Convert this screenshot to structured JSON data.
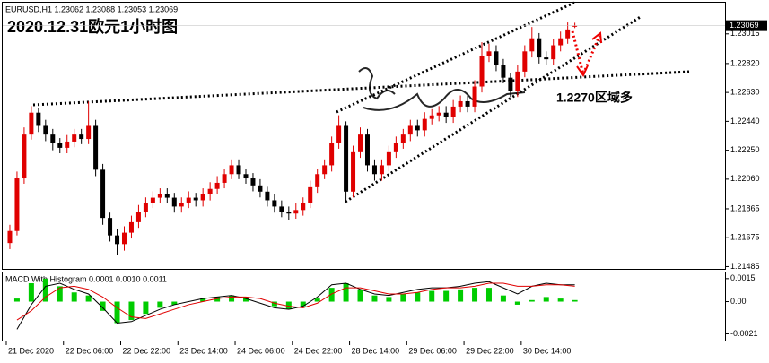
{
  "chart_data": {
    "type": "candlestick",
    "header": "EURUSD,H1  1.23062 1.23088 1.23053 1.23069",
    "title": "2020.12.31欧元1小时图",
    "annotation": "1.2270区域多",
    "up_color": "#e00000",
    "down_color": "#000000",
    "xlim": [
      -1,
      100
    ],
    "ylim": [
      1.2147,
      1.2322
    ],
    "yticks": [
      1.23015,
      {
        "value": 1.2282,
        "label": "1.22820"
      },
      {
        "value": 1.2263,
        "label": "1.22630"
      },
      {
        "value": 1.2244,
        "label": "1.22440"
      },
      {
        "value": 1.2225,
        "label": "1.22250"
      },
      {
        "value": 1.2206,
        "label": "1.22060"
      },
      1.21865,
      1.21675,
      1.21485
    ],
    "xticks": [
      {
        "value": -0.5,
        "label": "21 Dec 2020"
      },
      {
        "value": 7.5,
        "label": "22 Dec 06:00"
      },
      {
        "value": 15.5,
        "label": "22 Dec 22:00"
      },
      {
        "value": 23.5,
        "label": "23 Dec 14:00"
      },
      {
        "value": 31.5,
        "label": "24 Dec 06:00"
      },
      {
        "value": 39.5,
        "label": "24 Dec 22:00"
      },
      {
        "value": 47.5,
        "label": "28 Dec 14:00"
      },
      {
        "value": 55.5,
        "label": "29 Dec 06:00"
      },
      {
        "value": 63.5,
        "label": "29 Dec 22:00"
      },
      {
        "value": 71.5,
        "label": "30 Dec 14:00"
      }
    ],
    "candles": {
      "open": [
        1.2164,
        1.21719,
        1.22065,
        1.22353,
        1.22497,
        1.2241,
        1.22353,
        1.22295,
        1.22266,
        1.22307,
        1.22353,
        1.22324,
        1.2241,
        1.22122,
        1.21805,
        1.2169,
        1.21633,
        1.21708,
        1.21777,
        1.21846,
        1.21903,
        1.21938,
        1.21961,
        1.21938,
        1.2188,
        1.21903,
        1.21938,
        1.21921,
        1.21961,
        1.21996,
        1.22036,
        1.22093,
        1.22151,
        1.22093,
        1.22065,
        1.22019,
        1.21978,
        1.21921,
        1.2188,
        1.21846,
        1.21834,
        1.21857,
        1.21903,
        1.22007,
        1.22093,
        1.22151,
        1.22295,
        1.2241,
        1.21978,
        1.22237,
        1.22353,
        1.22151,
        1.22093,
        1.22151,
        1.22237,
        1.22295,
        1.22353,
        1.2241,
        1.22381,
        1.22456,
        1.22479,
        1.22497,
        1.22468,
        1.22537,
        1.22572,
        1.22537,
        1.22669,
        1.22871,
        1.229,
        1.22813,
        1.22727,
        1.22641,
        1.22767,
        1.229,
        1.22986,
        1.2286,
        1.22848,
        1.2294,
        1.22986,
        1.23062
      ],
      "high": [
        1.2176,
        1.2211,
        1.224,
        1.2254,
        1.2253,
        1.2245,
        1.2239,
        1.2233,
        1.2235,
        1.2239,
        1.2239,
        1.2257,
        1.2245,
        1.2216,
        1.2184,
        1.2173,
        1.2175,
        1.2182,
        1.2189,
        1.2194,
        1.2198,
        1.22,
        1.22,
        1.2197,
        1.2194,
        1.2198,
        1.2197,
        1.22,
        1.2204,
        1.2208,
        1.2213,
        1.2219,
        1.2219,
        1.2213,
        1.221,
        1.2206,
        1.2201,
        1.2196,
        1.2192,
        1.2188,
        1.219,
        1.2194,
        1.2205,
        1.2213,
        1.2219,
        1.2234,
        1.2248,
        1.2244,
        1.2228,
        1.224,
        1.2239,
        1.2219,
        1.2219,
        1.2228,
        1.2234,
        1.2239,
        1.2245,
        1.2245,
        1.225,
        1.2252,
        1.2254,
        1.2254,
        1.2258,
        1.2261,
        1.2261,
        1.2271,
        1.2296,
        1.2295,
        1.2294,
        1.2285,
        1.2276,
        1.2281,
        1.2294,
        1.2306,
        1.2302,
        1.229,
        1.2298,
        1.2303,
        1.2309,
        1.23088
      ],
      "low": [
        1.216,
        1.2169,
        1.2203,
        1.2232,
        1.2237,
        1.2231,
        1.2225,
        1.2223,
        1.2223,
        1.2227,
        1.2229,
        1.2229,
        1.2208,
        1.2176,
        1.2165,
        1.2156,
        1.2159,
        1.2167,
        1.2174,
        1.2181,
        1.2187,
        1.219,
        1.219,
        1.2184,
        1.2184,
        1.2187,
        1.2188,
        1.2188,
        1.2192,
        1.2196,
        1.22,
        1.2206,
        1.2206,
        1.2203,
        1.2198,
        1.2194,
        1.2188,
        1.2184,
        1.2181,
        1.2179,
        1.218,
        1.2182,
        1.2187,
        1.2197,
        1.2206,
        1.2211,
        1.2226,
        1.219,
        1.2194,
        1.222,
        1.2211,
        1.2205,
        1.2205,
        1.2211,
        1.222,
        1.2226,
        1.2231,
        1.2234,
        1.2234,
        1.2242,
        1.2244,
        1.2243,
        1.2243,
        1.225,
        1.225,
        1.225,
        1.2263,
        1.2283,
        1.2277,
        1.2269,
        1.226,
        1.226,
        1.2273,
        1.2286,
        1.2282,
        1.2281,
        1.2281,
        1.229,
        1.2295,
        1.23053
      ],
      "close": [
        1.21719,
        1.22065,
        1.22353,
        1.22497,
        1.2241,
        1.22353,
        1.22295,
        1.22266,
        1.22307,
        1.22353,
        1.22324,
        1.2241,
        1.22122,
        1.21805,
        1.2169,
        1.21633,
        1.21708,
        1.21777,
        1.21846,
        1.21903,
        1.21938,
        1.21961,
        1.21938,
        1.2188,
        1.21903,
        1.21938,
        1.21921,
        1.21961,
        1.21996,
        1.22036,
        1.22093,
        1.22151,
        1.22093,
        1.22065,
        1.22019,
        1.21978,
        1.21921,
        1.2188,
        1.21846,
        1.21834,
        1.21857,
        1.21903,
        1.22007,
        1.22093,
        1.22151,
        1.22295,
        1.2241,
        1.21978,
        1.22237,
        1.22353,
        1.22151,
        1.22093,
        1.22151,
        1.22237,
        1.22295,
        1.22353,
        1.2241,
        1.22381,
        1.22456,
        1.22479,
        1.22497,
        1.22468,
        1.22537,
        1.22572,
        1.22537,
        1.22669,
        1.22871,
        1.229,
        1.22813,
        1.22727,
        1.22641,
        1.22767,
        1.229,
        1.22986,
        1.2286,
        1.22848,
        1.2294,
        1.22986,
        1.23044,
        1.23069
      ]
    },
    "macd": {
      "header": "MACD With Histogram 0.0001 0.0010 0.0011",
      "ylim": [
        -0.00254,
        0.0019
      ],
      "yticks": [
        0.0015,
        {
          "value": 0,
          "label": "0.00"
        },
        -0.0021
      ],
      "x": [
        1,
        3,
        5,
        7,
        9,
        11,
        13,
        15,
        17,
        19,
        21,
        23,
        25,
        27,
        29,
        31,
        33,
        35,
        37,
        39,
        41,
        43,
        45,
        47,
        49,
        51,
        53,
        55,
        57,
        59,
        61,
        63,
        65,
        67,
        69,
        71,
        73,
        75,
        77,
        79
      ],
      "histogram_color": "#00cc00",
      "histogram": [
        0.0002,
        0.0012,
        0.0015,
        0.001,
        0.0006,
        0.0004,
        -0.0006,
        -0.0014,
        -0.0012,
        -0.0008,
        -0.0004,
        -0.0002,
        0,
        0.0002,
        0.0003,
        0.0004,
        0.0003,
        0,
        -0.0003,
        -0.0005,
        -0.0003,
        0.0002,
        0.0009,
        0.0012,
        0.0008,
        0.0004,
        0.0003,
        0.0005,
        0.0006,
        0.0007,
        0.0007,
        0.0008,
        0.0009,
        0.0009,
        0.0004,
        -0.0002,
        0.0001,
        0.0003,
        0.0002,
        0.0001
      ],
      "series": [
        {
          "color": "#000000",
          "values": [
            -0.0018,
            -0.0002,
            0.001,
            0.0012,
            0.0008,
            0.0005,
            -0.0004,
            -0.0014,
            -0.0013,
            -0.0009,
            -0.0005,
            -0.0002,
            0,
            0.0002,
            0.0003,
            0.0004,
            0.0002,
            -0.0001,
            -0.0004,
            -0.0005,
            -0.0003,
            0.0003,
            0.0011,
            0.0012,
            0.0008,
            0.0005,
            0.0004,
            0.0006,
            0.0008,
            0.0009,
            0.0009,
            0.001,
            0.0012,
            0.0013,
            0.0009,
            0.0005,
            0.001,
            0.0012,
            0.0011,
            0.0011
          ]
        },
        {
          "color": "#e00000",
          "values": [
            -0.0012,
            -0.0006,
            0.0003,
            0.0009,
            0.001,
            0.0008,
            0.0003,
            -0.0004,
            -0.001,
            -0.0011,
            -0.0008,
            -0.0005,
            -0.0002,
            0,
            0.0002,
            0.0003,
            0.0003,
            0.0002,
            -0.0001,
            -0.0003,
            -0.0004,
            -0.0001,
            0.0005,
            0.0009,
            0.0009,
            0.0007,
            0.0005,
            0.0005,
            0.0006,
            0.0008,
            0.0009,
            0.0009,
            0.001,
            0.0012,
            0.0012,
            0.001,
            0.001,
            0.0011,
            0.0011,
            0.001
          ]
        }
      ]
    }
  }
}
